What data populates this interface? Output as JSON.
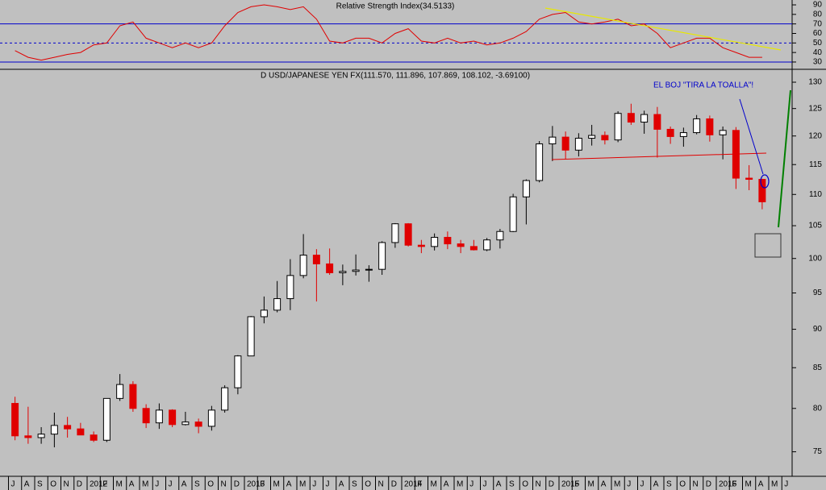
{
  "chart_data": [
    {
      "type": "line",
      "title": "Relative Strength Index(34.5133)",
      "color": "#e00000",
      "values": [
        42,
        35,
        32,
        35,
        38,
        40,
        48,
        50,
        68,
        72,
        55,
        50,
        45,
        50,
        45,
        50,
        68,
        82,
        88,
        90,
        88,
        85,
        88,
        75,
        52,
        50,
        55,
        55,
        50,
        60,
        65,
        52,
        50,
        55,
        50,
        52,
        48,
        50,
        55,
        62,
        75,
        80,
        82,
        72,
        70,
        72,
        75,
        68,
        70,
        60,
        45,
        50,
        55,
        55,
        45,
        40,
        35,
        35
      ],
      "ylim": [
        23.2,
        95.1
      ],
      "yticks": [
        30,
        40,
        50,
        60,
        70,
        80,
        90
      ],
      "solid_lines": [
        30,
        70
      ],
      "dashed_lines": [
        50
      ],
      "line_color": "#0000cc"
    },
    {
      "type": "candlestick",
      "title": "D USD/JAPANESE YEN FX(111.570, 111.896, 107.869, 108.102, -3.69100)",
      "annotation": "EL BOJ \"TIRA LA TOALLA\"!",
      "categories": [
        "J",
        "A",
        "S",
        "O",
        "N",
        "D",
        "2012",
        "F",
        "M",
        "A",
        "M",
        "J",
        "J",
        "A",
        "S",
        "O",
        "N",
        "D",
        "2013",
        "F",
        "M",
        "A",
        "M",
        "J",
        "J",
        "A",
        "S",
        "O",
        "N",
        "D",
        "2014",
        "F",
        "M",
        "A",
        "M",
        "J",
        "J",
        "A",
        "S",
        "O",
        "N",
        "D",
        "2015",
        "F",
        "M",
        "A",
        "M",
        "J",
        "J",
        "A",
        "S",
        "O",
        "N",
        "D",
        "2016",
        "F",
        "M",
        "A",
        "M",
        "J"
      ],
      "open": [
        80.6,
        76.8,
        76.6,
        77.0,
        78.0,
        77.6,
        76.9,
        76.3,
        81.2,
        82.9,
        80.0,
        78.3,
        79.8,
        78.1,
        78.4,
        77.9,
        79.8,
        82.5,
        86.5,
        91.7,
        92.6,
        94.2,
        97.5,
        100.5,
        99.2,
        97.9,
        98.1,
        98.3,
        98.4,
        102.4,
        105.3,
        102.0,
        101.8,
        103.2,
        102.2,
        101.8,
        101.3,
        102.8,
        104.1,
        109.6,
        112.3,
        118.6,
        119.8,
        117.5,
        119.6,
        120.1,
        119.3,
        124.1,
        122.5,
        123.9,
        121.2,
        119.9,
        120.6,
        123.1,
        120.2,
        121.0,
        112.7,
        112.5,
        null,
        null
      ],
      "high": [
        81.4,
        80.2,
        77.8,
        79.5,
        79.0,
        78.3,
        77.3,
        81.2,
        84.2,
        83.3,
        80.5,
        80.6,
        79.9,
        79.6,
        78.8,
        80.3,
        82.8,
        86.6,
        91.8,
        94.5,
        96.7,
        99.9,
        103.7,
        101.4,
        101.5,
        99.1,
        100.6,
        99.0,
        102.6,
        105.4,
        105.4,
        102.8,
        103.8,
        104.1,
        102.8,
        102.8,
        103.1,
        104.5,
        110.1,
        112.5,
        119.1,
        121.8,
        120.8,
        120.5,
        122.0,
        120.8,
        124.5,
        125.9,
        124.6,
        125.3,
        121.7,
        121.5,
        123.8,
        123.7,
        121.7,
        121.6,
        114.9,
        112.6,
        null,
        null
      ],
      "low": [
        76.3,
        75.9,
        75.9,
        75.5,
        76.6,
        77.0,
        76.1,
        76.1,
        80.9,
        79.6,
        77.7,
        77.6,
        77.8,
        78.0,
        77.1,
        77.4,
        79.5,
        81.7,
        86.5,
        90.8,
        92.3,
        92.6,
        97.1,
        93.8,
        97.6,
        96.1,
        97.5,
        96.6,
        97.6,
        101.6,
        101.8,
        100.8,
        101.2,
        101.4,
        100.8,
        101.2,
        101.1,
        101.5,
        104.0,
        105.2,
        112.0,
        115.6,
        115.9,
        116.4,
        118.3,
        118.5,
        118.9,
        122.0,
        120.4,
        116.2,
        118.6,
        118.1,
        120.3,
        119.0,
        115.9,
        110.9,
        110.7,
        107.6,
        null,
        null
      ],
      "close": [
        76.8,
        76.6,
        77.0,
        78.0,
        77.6,
        76.9,
        76.3,
        81.2,
        82.9,
        80.0,
        78.3,
        79.8,
        78.1,
        78.4,
        77.9,
        79.8,
        82.5,
        86.5,
        91.7,
        92.6,
        94.2,
        97.5,
        100.5,
        99.2,
        97.9,
        98.1,
        98.3,
        98.4,
        102.4,
        105.3,
        102.0,
        101.8,
        103.2,
        102.2,
        101.8,
        101.3,
        102.8,
        104.1,
        109.6,
        112.3,
        118.6,
        119.8,
        117.5,
        119.6,
        120.1,
        119.3,
        124.1,
        122.5,
        123.9,
        121.2,
        119.9,
        120.6,
        123.1,
        120.2,
        121.0,
        112.7,
        112.5,
        108.8,
        null,
        null
      ],
      "up_color": "#000000",
      "down_color": "#e00000",
      "log": true,
      "ylim": [
        72.4,
        132.2
      ],
      "yticks": [
        75,
        80,
        85,
        90,
        95,
        100,
        105,
        110,
        115,
        120,
        125,
        130
      ]
    }
  ]
}
